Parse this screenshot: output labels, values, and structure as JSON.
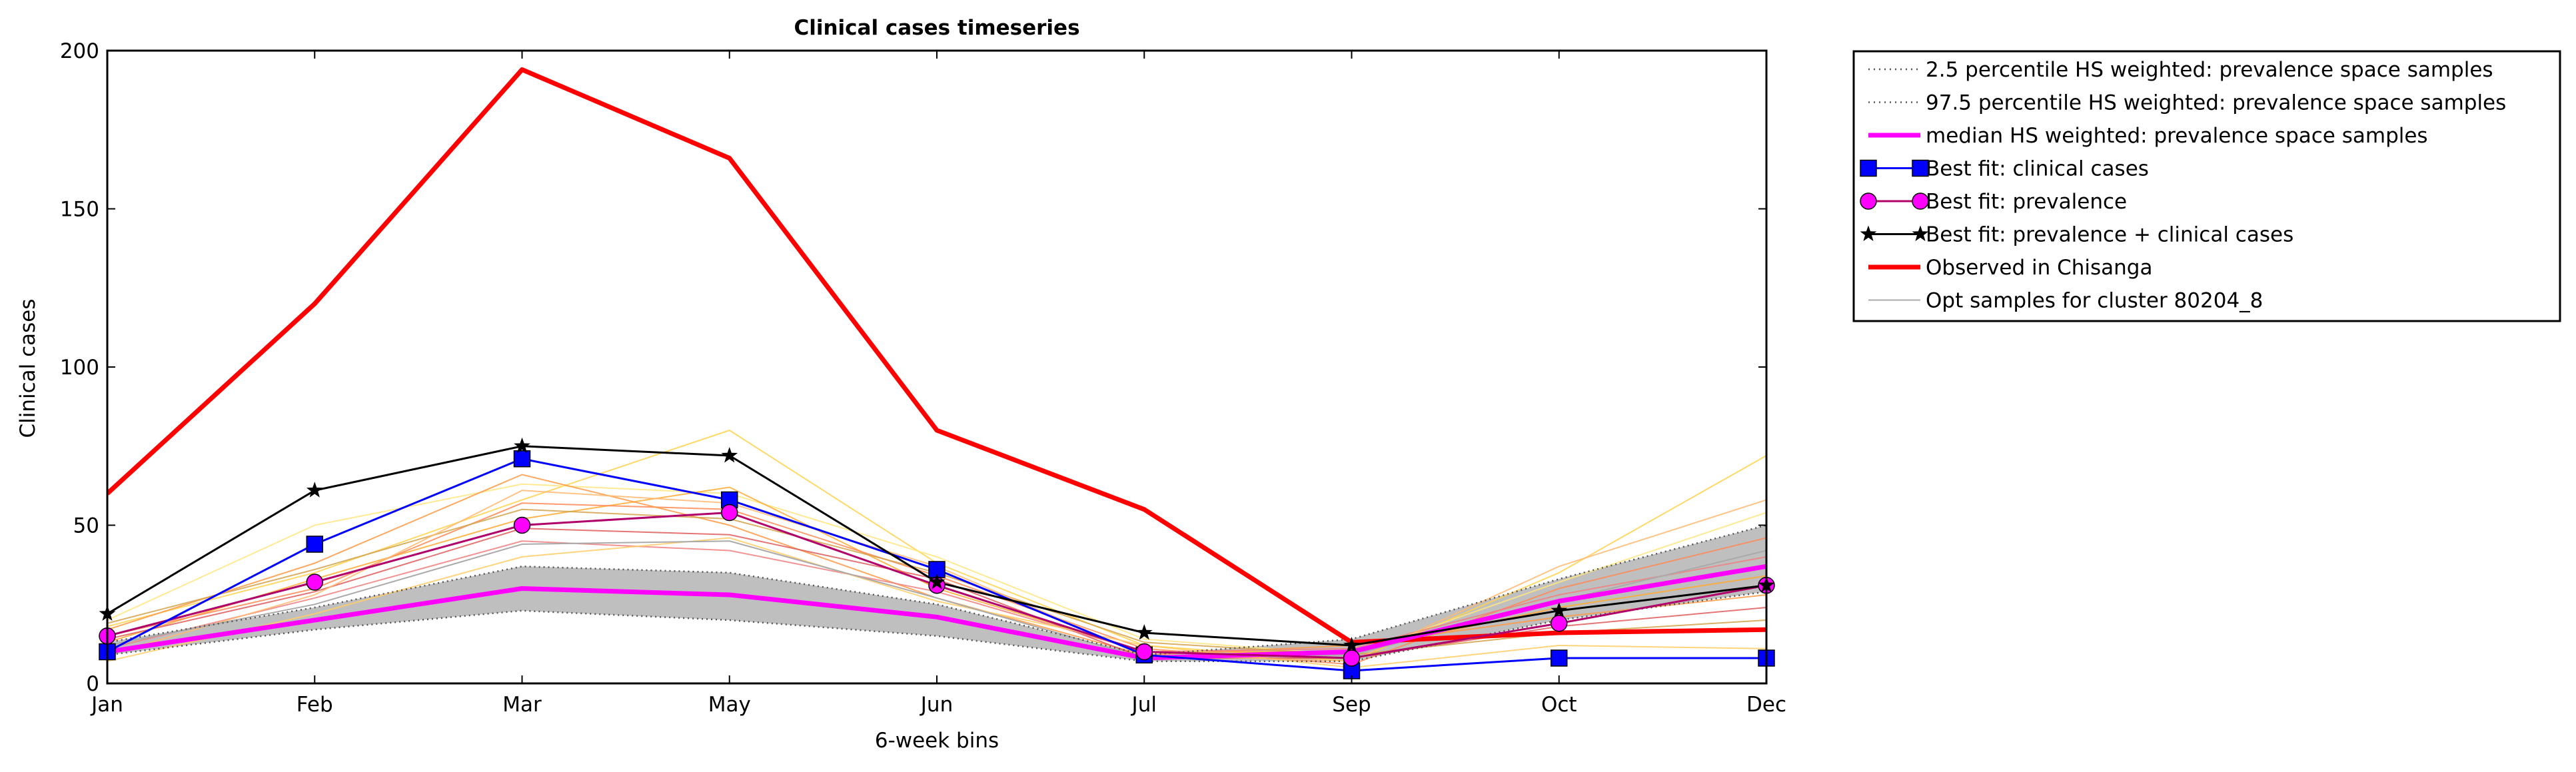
{
  "chart_data": {
    "type": "line",
    "title": "Clinical cases timeseries",
    "xlabel": "6-week bins",
    "ylabel": "Clinical cases",
    "categories": [
      "Jan",
      "Feb",
      "Mar",
      "May",
      "Jun",
      "Jul",
      "Sep",
      "Oct",
      "Dec"
    ],
    "ylim": [
      0,
      200
    ],
    "yticks": [
      0,
      50,
      100,
      150,
      200
    ],
    "grid": false,
    "legend_position": "outside-right-top",
    "shaded_band": {
      "lower": [
        9,
        17,
        23,
        20,
        15,
        7,
        7,
        20,
        29
      ],
      "upper": [
        13,
        24,
        37,
        35,
        25,
        9,
        14,
        33,
        50
      ],
      "color": "#bfbfbf"
    },
    "series": [
      {
        "name": "2.5 percentile HS weighted: prevalence space samples",
        "style": "dotted",
        "color": "#555555",
        "values": [
          9,
          17,
          23,
          20,
          15,
          7,
          7,
          20,
          29
        ]
      },
      {
        "name": "97.5 percentile HS weighted: prevalence space samples",
        "style": "dotted",
        "color": "#555555",
        "values": [
          13,
          24,
          37,
          35,
          25,
          9,
          14,
          33,
          50
        ]
      },
      {
        "name": "median HS weighted: prevalence space samples",
        "style": "solid",
        "color": "#ff00ff",
        "values": [
          10,
          20,
          30,
          28,
          21,
          8,
          10,
          26,
          37
        ]
      },
      {
        "name": "Best fit: clinical cases",
        "style": "solid",
        "marker": "square",
        "color": "#0000ff",
        "values": [
          10,
          44,
          71,
          58,
          36,
          9,
          4,
          8,
          8
        ]
      },
      {
        "name": "Best fit: prevalence",
        "style": "solid",
        "marker": "circle",
        "color": "#ff00ff",
        "line_color": "#b0006a",
        "values": [
          15,
          32,
          50,
          54,
          31,
          10,
          8,
          19,
          31
        ]
      },
      {
        "name": "Best fit: prevalence + clinical cases",
        "style": "solid",
        "marker": "star",
        "color": "#000000",
        "values": [
          22,
          61,
          75,
          72,
          32,
          16,
          12,
          23,
          31
        ]
      },
      {
        "name": "Observed in Chisanga",
        "style": "solid",
        "color": "#ff0000",
        "values": [
          60,
          120,
          194,
          166,
          80,
          55,
          13,
          16,
          17
        ]
      },
      {
        "name": "Opt samples for cluster 80204_8",
        "style": "solid",
        "color": "#aaaaaa",
        "values": [
          12,
          25,
          44,
          45,
          27,
          8,
          9,
          26,
          42
        ]
      }
    ],
    "sample_lines": [
      {
        "color": "#ffd24d",
        "values": [
          18,
          35,
          58,
          80,
          38,
          12,
          7,
          35,
          72
        ]
      },
      {
        "color": "#ffe680",
        "values": [
          20,
          50,
          63,
          60,
          40,
          14,
          9,
          32,
          54
        ]
      },
      {
        "color": "#ffaa33",
        "values": [
          13,
          33,
          52,
          62,
          30,
          10,
          10,
          24,
          34
        ]
      },
      {
        "color": "#ff8855",
        "values": [
          15,
          30,
          57,
          55,
          34,
          11,
          6,
          30,
          46
        ]
      },
      {
        "color": "#ff9944",
        "values": [
          17,
          38,
          66,
          50,
          27,
          9,
          12,
          21,
          28
        ]
      },
      {
        "color": "#e05c5c",
        "values": [
          14,
          29,
          49,
          47,
          33,
          8,
          8,
          18,
          24
        ]
      },
      {
        "color": "#f08080",
        "values": [
          11,
          27,
          45,
          42,
          29,
          10,
          11,
          28,
          40
        ]
      },
      {
        "color": "#ffcc66",
        "values": [
          7,
          22,
          40,
          46,
          26,
          12,
          5,
          12,
          11
        ]
      },
      {
        "color": "#d2a24a",
        "values": [
          19,
          36,
          55,
          52,
          35,
          13,
          9,
          16,
          20
        ]
      },
      {
        "color": "#ffb870",
        "values": [
          9,
          28,
          61,
          57,
          37,
          9,
          7,
          37,
          58
        ]
      }
    ]
  }
}
